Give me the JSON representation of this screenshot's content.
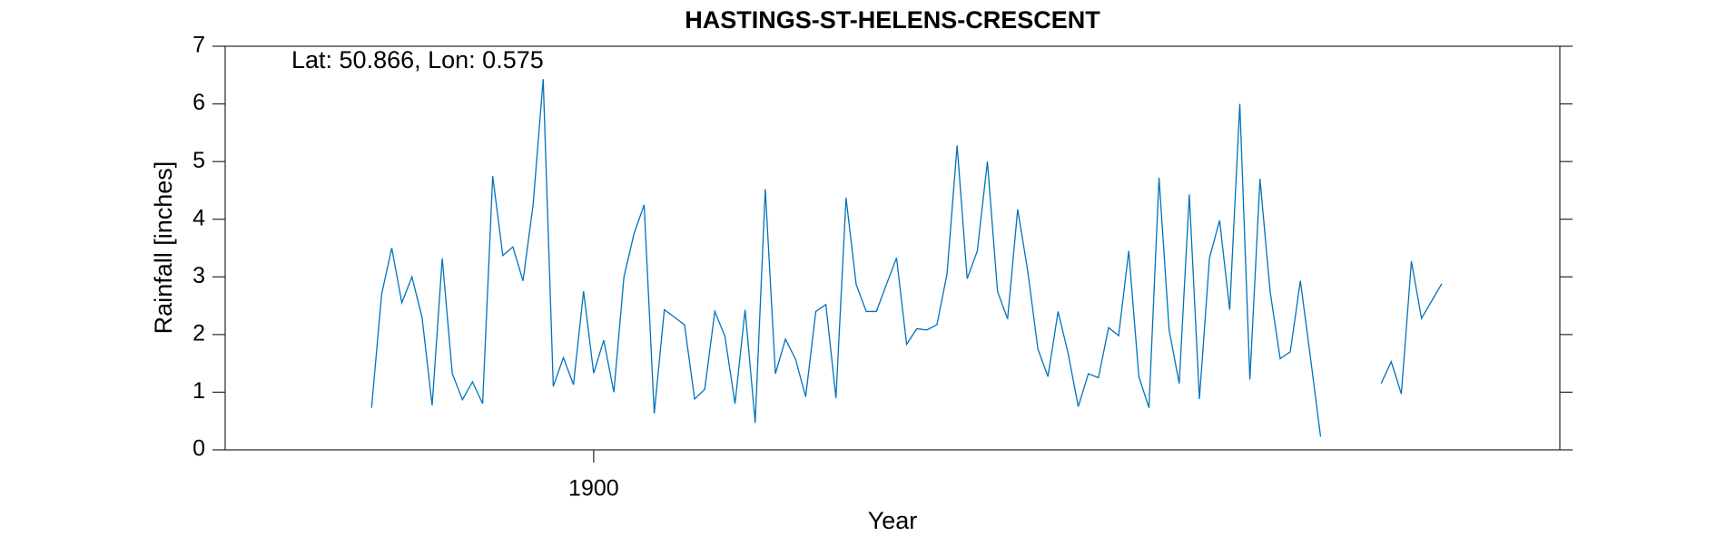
{
  "chart_data": {
    "type": "line",
    "title": "HASTINGS-ST-HELENS-CRESCENT",
    "annotation": "Lat: 50.866, Lon: 0.575",
    "x_label": "Year",
    "y_label": "Rainfall [inches]",
    "x": [
      1878,
      1879,
      1880,
      1881,
      1882,
      1883,
      1884,
      1885,
      1886,
      1887,
      1888,
      1889,
      1890,
      1891,
      1892,
      1893,
      1894,
      1895,
      1896,
      1897,
      1898,
      1899,
      1900,
      1901,
      1902,
      1903,
      1904,
      1905,
      1906,
      1907,
      1908,
      1909,
      1910,
      1911,
      1912,
      1913,
      1914,
      1915,
      1916,
      1917,
      1918,
      1919,
      1920,
      1921,
      1922,
      1923,
      1924,
      1925,
      1926,
      1927,
      1928,
      1929,
      1930,
      1931,
      1932,
      1933,
      1934,
      1935,
      1936,
      1937,
      1938,
      1939,
      1940,
      1941,
      1942,
      1943,
      1944,
      1945,
      1946,
      1947,
      1948,
      1949,
      1950,
      1951,
      1952,
      1953,
      1954,
      1955,
      1956,
      1957,
      1958,
      1959,
      1960,
      1961,
      1962,
      1963,
      1964,
      1965,
      1966,
      1967,
      1968,
      1969,
      1970,
      1971,
      1972,
      1973,
      1974,
      1975,
      1976,
      1977,
      1978,
      1979,
      1980,
      1981,
      1982,
      1983,
      1984
    ],
    "series": [
      {
        "name": "Rainfall",
        "color": "#0072BD",
        "values": [
          0.73,
          2.7,
          3.5,
          2.55,
          3.0,
          2.3,
          0.77,
          3.32,
          1.32,
          0.87,
          1.18,
          0.8,
          4.75,
          3.37,
          3.52,
          2.93,
          4.25,
          6.43,
          1.1,
          1.6,
          1.13,
          2.75,
          1.33,
          1.9,
          1.0,
          3.0,
          3.75,
          4.25,
          0.63,
          2.43,
          2.3,
          2.17,
          0.88,
          1.05,
          2.4,
          1.97,
          0.8,
          2.43,
          0.47,
          4.52,
          1.32,
          1.92,
          1.57,
          0.92,
          2.4,
          2.52,
          0.9,
          4.37,
          2.87,
          2.4,
          2.4,
          2.87,
          3.33,
          1.83,
          2.1,
          2.08,
          2.17,
          3.05,
          5.28,
          2.97,
          3.45,
          5.0,
          2.75,
          2.27,
          4.17,
          3.1,
          1.75,
          1.27,
          2.4,
          1.67,
          0.75,
          1.32,
          1.25,
          2.12,
          1.98,
          3.45,
          1.27,
          0.73,
          4.72,
          2.08,
          1.15,
          4.43,
          0.88,
          3.33,
          3.98,
          2.43,
          6.0,
          1.22,
          4.7,
          2.75,
          1.58,
          1.7,
          2.93,
          1.6,
          0.23,
          null,
          null,
          null,
          null,
          null,
          1.15,
          1.53,
          0.97,
          3.27,
          2.28,
          2.58,
          2.88
        ]
      }
    ],
    "xlim": [
      1863.5,
      1995.7
    ],
    "xticks": [
      1900
    ],
    "ylim": [
      0,
      7
    ],
    "yticks": [
      0,
      1,
      2,
      3,
      4,
      5,
      6,
      7
    ]
  }
}
